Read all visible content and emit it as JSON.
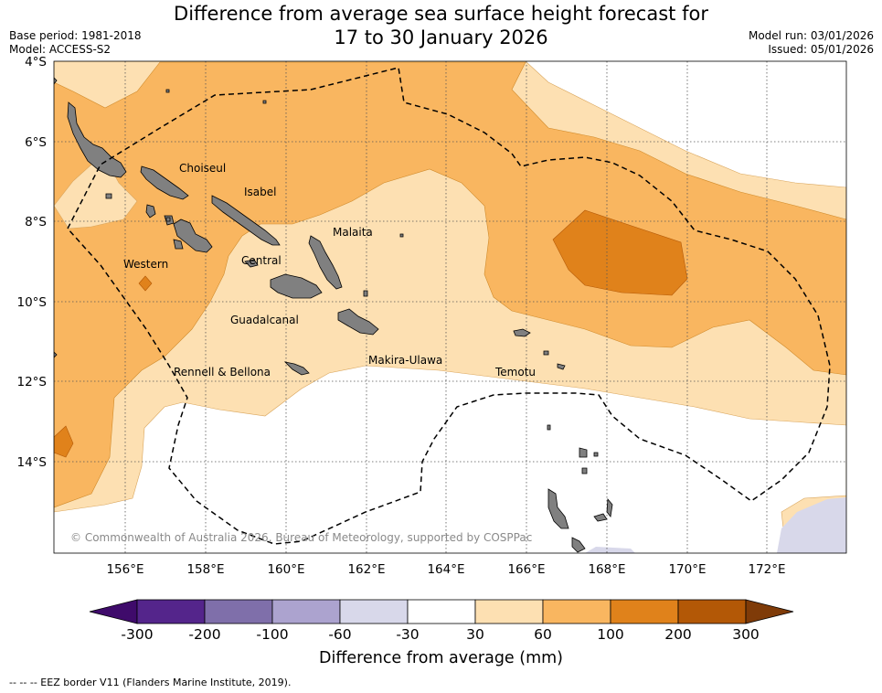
{
  "header": {
    "title_line1": "Difference from average sea surface height forecast for",
    "title_line2": "17 to 30 January 2026",
    "base_period": "Base period: 1981-2018",
    "model": "Model: ACCESS-S2",
    "model_run": "Model run: 03/01/2026",
    "issued": "Issued: 05/01/2026"
  },
  "map": {
    "lat_labels": [
      "4°S",
      "6°S",
      "8°S",
      "10°S",
      "12°S",
      "14°S"
    ],
    "lon_labels": [
      "156°E",
      "158°E",
      "160°E",
      "162°E",
      "164°E",
      "166°E",
      "168°E",
      "170°E",
      "172°E"
    ],
    "provinces": [
      "Choiseul",
      "Isabel",
      "Malaita",
      "Western",
      "Central",
      "Guadalcanal",
      "Makira-Ulawa",
      "Rennell & Bellona",
      "Temotu"
    ],
    "copyright": "© Commonwealth of Australia 2026, Bureau of Meteorology, supported by COSPPac"
  },
  "colorbar": {
    "title": "Difference from average (mm)",
    "labels": [
      "-300",
      "-200",
      "-100",
      "-60",
      "-30",
      "30",
      "60",
      "100",
      "200",
      "300"
    ],
    "colors": [
      "#3f0b6b",
      "#54258b",
      "#7f6faa",
      "#aca3cf",
      "#d8d8ea",
      "#ffffff",
      "#fde0b2",
      "#f9b660",
      "#e0821b",
      "#b35806",
      "#7f3b08"
    ]
  },
  "footnote": "-- -- -- EEZ border V11 (Flanders Marine Institute, 2019)."
}
